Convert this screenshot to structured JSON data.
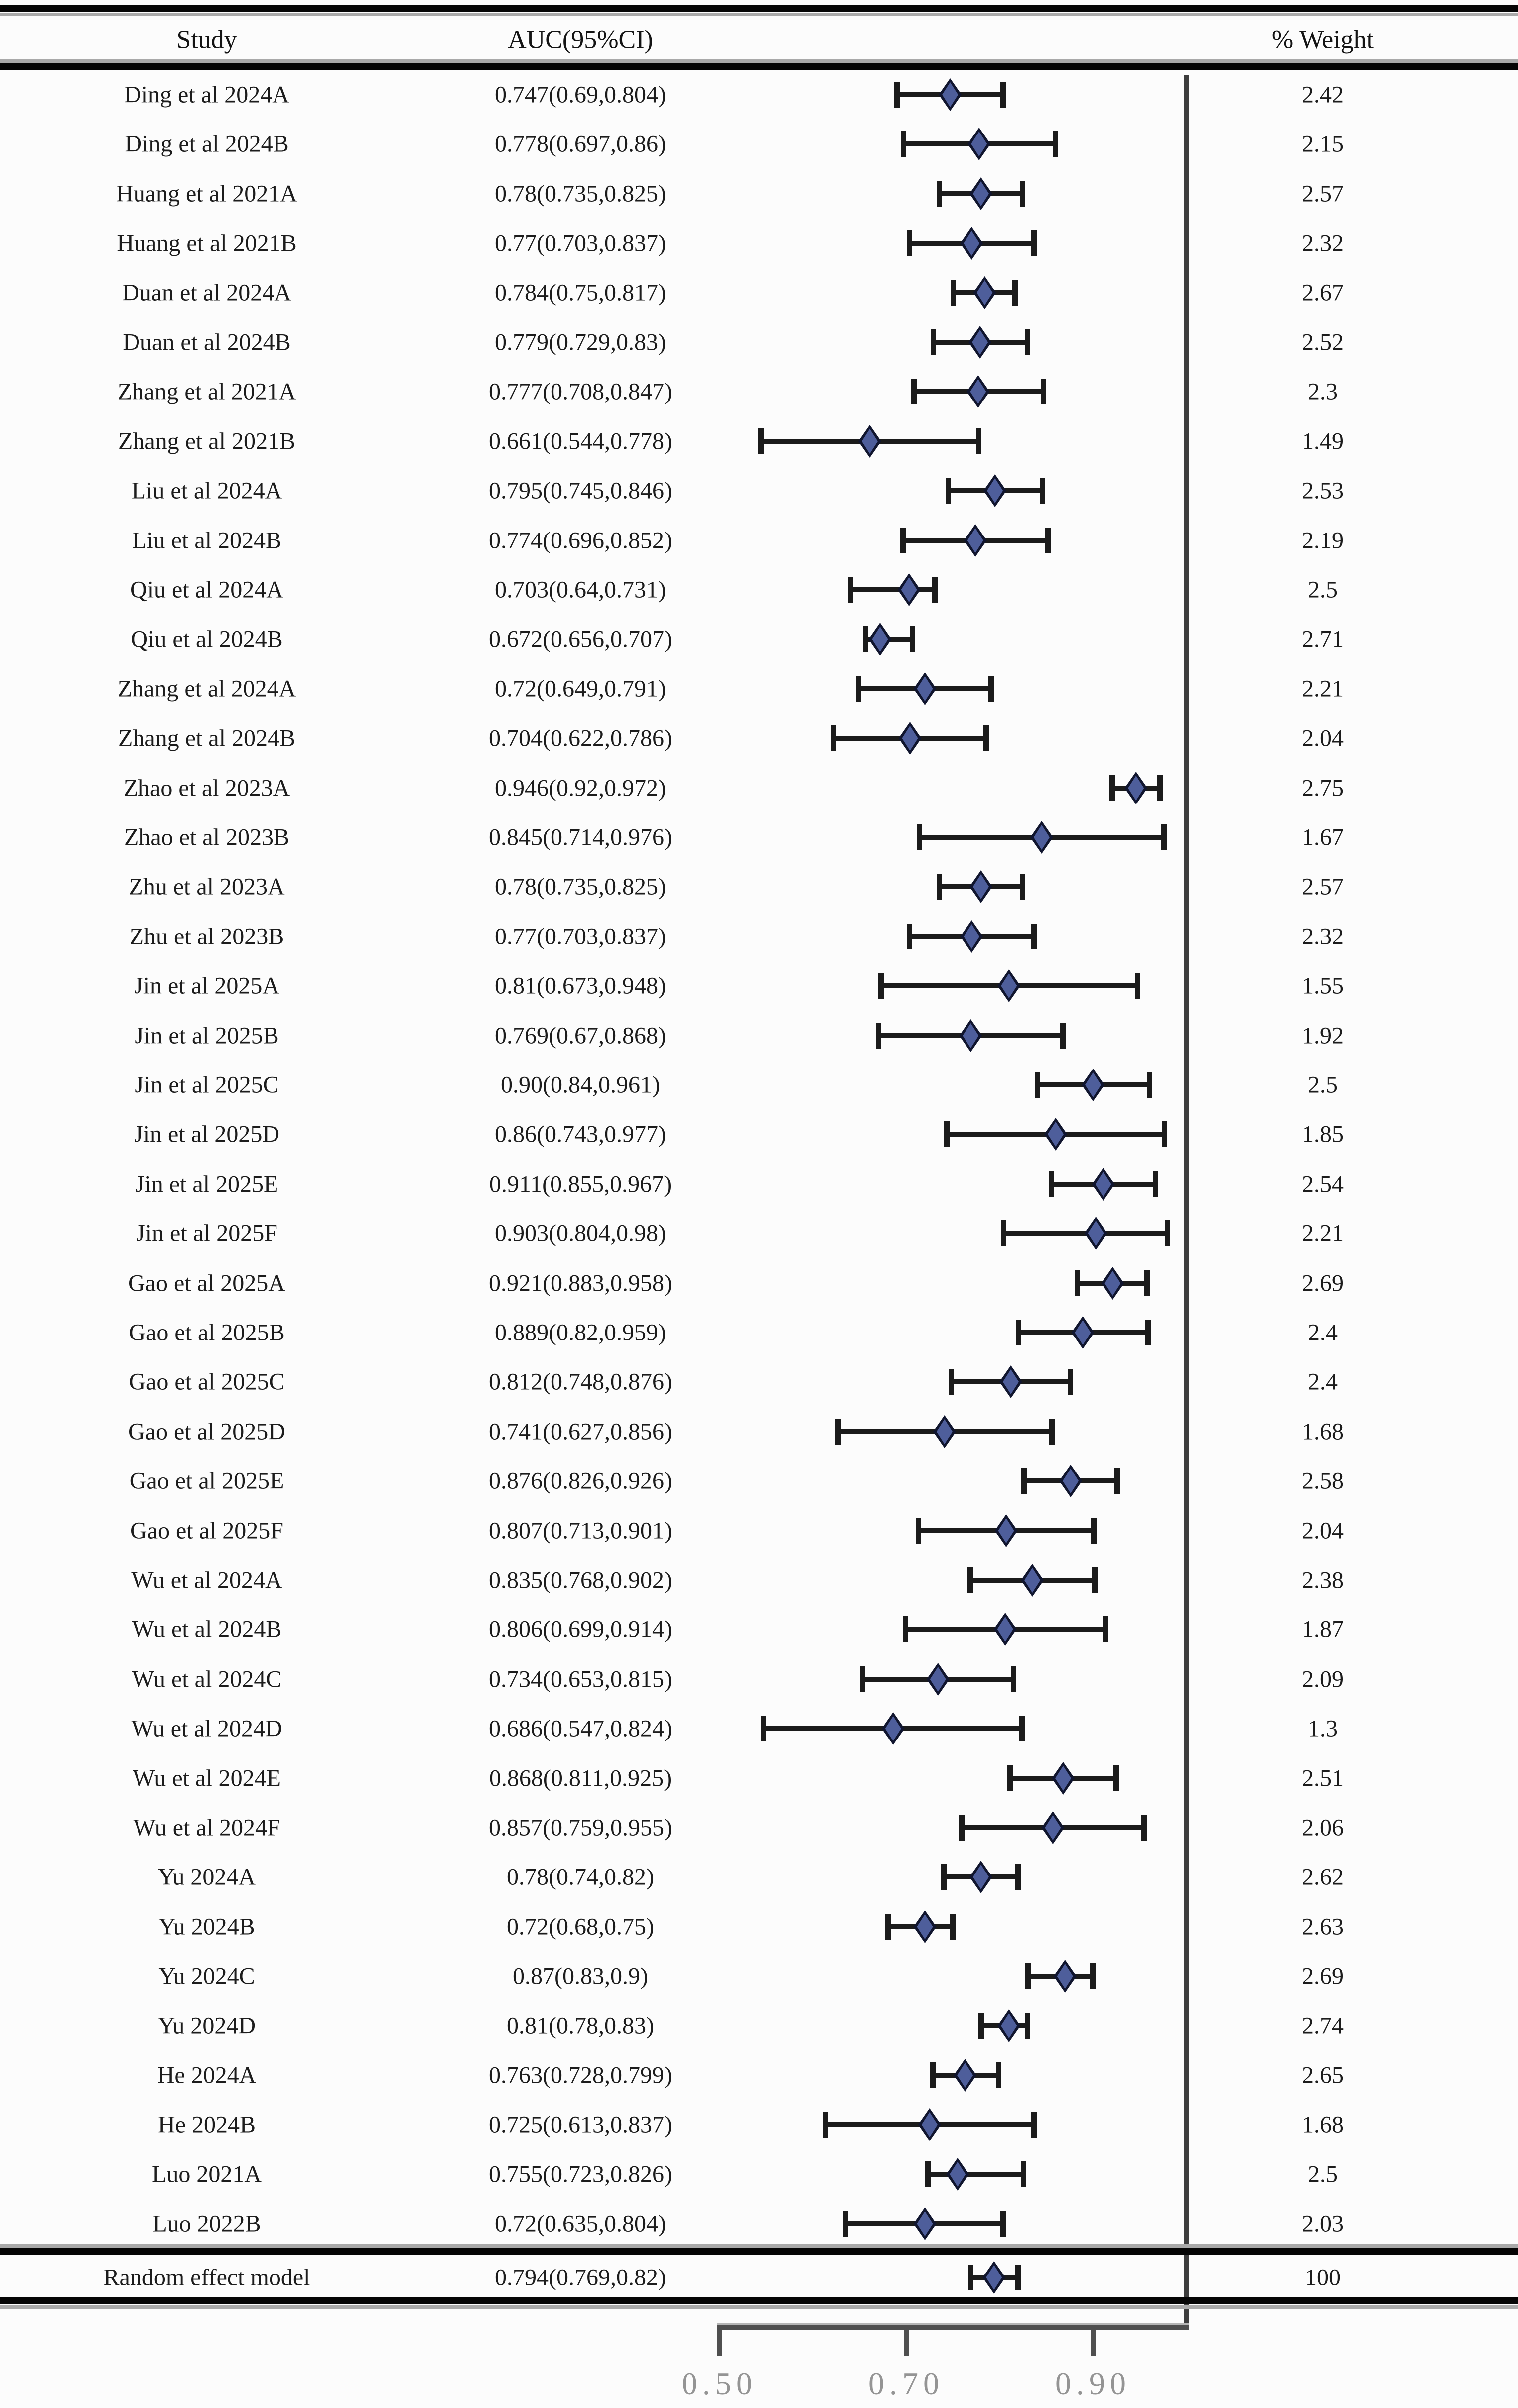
{
  "header": {
    "study": "Study",
    "auc": "AUC(95%CI)",
    "weight": "% Weight"
  },
  "chart_data": {
    "type": "forest",
    "title": "",
    "xlabel": "",
    "axis_range": [
      0.5,
      1.0
    ],
    "tick_values": [
      0.5,
      0.7,
      0.9
    ],
    "tick_labels": [
      "0.50",
      "0.70",
      "0.90"
    ],
    "refline_value": 1.0,
    "grid": false,
    "marker": "diamond",
    "colors": {
      "diamond_fill": "#4e5e9b",
      "diamond_border": "#10152e",
      "ci_line": "#1b1b1b",
      "refline": "#3d3d3d",
      "tick_label": "#949494",
      "text": "#1c1c1c",
      "rule": "#050505"
    },
    "studies": [
      {
        "label": "Ding et al 2024A",
        "auc_text": "0.747(0.69,0.804)",
        "auc": 0.747,
        "ci_low": 0.69,
        "ci_high": 0.804,
        "weight": "2.42"
      },
      {
        "label": "Ding et al 2024B",
        "auc_text": "0.778(0.697,0.86)",
        "auc": 0.778,
        "ci_low": 0.697,
        "ci_high": 0.86,
        "weight": "2.15"
      },
      {
        "label": "Huang et al 2021A",
        "auc_text": "0.78(0.735,0.825)",
        "auc": 0.78,
        "ci_low": 0.735,
        "ci_high": 0.825,
        "weight": "2.57"
      },
      {
        "label": "Huang et al 2021B",
        "auc_text": "0.77(0.703,0.837)",
        "auc": 0.77,
        "ci_low": 0.703,
        "ci_high": 0.837,
        "weight": "2.32"
      },
      {
        "label": "Duan et al 2024A",
        "auc_text": "0.784(0.75,0.817)",
        "auc": 0.784,
        "ci_low": 0.75,
        "ci_high": 0.817,
        "weight": "2.67"
      },
      {
        "label": "Duan et al 2024B",
        "auc_text": "0.779(0.729,0.83)",
        "auc": 0.779,
        "ci_low": 0.729,
        "ci_high": 0.83,
        "weight": "2.52"
      },
      {
        "label": "Zhang et al 2021A",
        "auc_text": "0.777(0.708,0.847)",
        "auc": 0.777,
        "ci_low": 0.708,
        "ci_high": 0.847,
        "weight": "2.3"
      },
      {
        "label": "Zhang et al 2021B",
        "auc_text": "0.661(0.544,0.778)",
        "auc": 0.661,
        "ci_low": 0.544,
        "ci_high": 0.778,
        "weight": "1.49"
      },
      {
        "label": "Liu et al 2024A",
        "auc_text": "0.795(0.745,0.846)",
        "auc": 0.795,
        "ci_low": 0.745,
        "ci_high": 0.846,
        "weight": "2.53"
      },
      {
        "label": "Liu et al 2024B",
        "auc_text": "0.774(0.696,0.852)",
        "auc": 0.774,
        "ci_low": 0.696,
        "ci_high": 0.852,
        "weight": "2.19"
      },
      {
        "label": "Qiu et al 2024A",
        "auc_text": "0.703(0.64,0.731)",
        "auc": 0.703,
        "ci_low": 0.64,
        "ci_high": 0.731,
        "weight": "2.5"
      },
      {
        "label": "Qiu et al 2024B",
        "auc_text": "0.672(0.656,0.707)",
        "auc": 0.672,
        "ci_low": 0.656,
        "ci_high": 0.707,
        "weight": "2.71"
      },
      {
        "label": "Zhang et al 2024A",
        "auc_text": "0.72(0.649,0.791)",
        "auc": 0.72,
        "ci_low": 0.649,
        "ci_high": 0.791,
        "weight": "2.21"
      },
      {
        "label": "Zhang et al 2024B",
        "auc_text": "0.704(0.622,0.786)",
        "auc": 0.704,
        "ci_low": 0.622,
        "ci_high": 0.786,
        "weight": "2.04"
      },
      {
        "label": "Zhao et al 2023A",
        "auc_text": "0.946(0.92,0.972)",
        "auc": 0.946,
        "ci_low": 0.92,
        "ci_high": 0.972,
        "weight": "2.75"
      },
      {
        "label": "Zhao et al 2023B",
        "auc_text": "0.845(0.714,0.976)",
        "auc": 0.845,
        "ci_low": 0.714,
        "ci_high": 0.976,
        "weight": "1.67"
      },
      {
        "label": "Zhu et al 2023A",
        "auc_text": "0.78(0.735,0.825)",
        "auc": 0.78,
        "ci_low": 0.735,
        "ci_high": 0.825,
        "weight": "2.57"
      },
      {
        "label": "Zhu et al 2023B",
        "auc_text": "0.77(0.703,0.837)",
        "auc": 0.77,
        "ci_low": 0.703,
        "ci_high": 0.837,
        "weight": "2.32"
      },
      {
        "label": "Jin et al 2025A",
        "auc_text": "0.81(0.673,0.948)",
        "auc": 0.81,
        "ci_low": 0.673,
        "ci_high": 0.948,
        "weight": "1.55"
      },
      {
        "label": "Jin et al 2025B",
        "auc_text": "0.769(0.67,0.868)",
        "auc": 0.769,
        "ci_low": 0.67,
        "ci_high": 0.868,
        "weight": "1.92"
      },
      {
        "label": "Jin et al 2025C",
        "auc_text": "0.90(0.84,0.961)",
        "auc": 0.9,
        "ci_low": 0.84,
        "ci_high": 0.961,
        "weight": "2.5"
      },
      {
        "label": "Jin et al 2025D",
        "auc_text": "0.86(0.743,0.977)",
        "auc": 0.86,
        "ci_low": 0.743,
        "ci_high": 0.977,
        "weight": "1.85"
      },
      {
        "label": "Jin et al 2025E",
        "auc_text": "0.911(0.855,0.967)",
        "auc": 0.911,
        "ci_low": 0.855,
        "ci_high": 0.967,
        "weight": "2.54"
      },
      {
        "label": "Jin et al 2025F",
        "auc_text": "0.903(0.804,0.98)",
        "auc": 0.903,
        "ci_low": 0.804,
        "ci_high": 0.98,
        "weight": "2.21"
      },
      {
        "label": "Gao et al 2025A",
        "auc_text": "0.921(0.883,0.958)",
        "auc": 0.921,
        "ci_low": 0.883,
        "ci_high": 0.958,
        "weight": "2.69"
      },
      {
        "label": "Gao et al 2025B",
        "auc_text": "0.889(0.82,0.959)",
        "auc": 0.889,
        "ci_low": 0.82,
        "ci_high": 0.959,
        "weight": "2.4"
      },
      {
        "label": "Gao et al 2025C",
        "auc_text": "0.812(0.748,0.876)",
        "auc": 0.812,
        "ci_low": 0.748,
        "ci_high": 0.876,
        "weight": "2.4"
      },
      {
        "label": "Gao et al 2025D",
        "auc_text": "0.741(0.627,0.856)",
        "auc": 0.741,
        "ci_low": 0.627,
        "ci_high": 0.856,
        "weight": "1.68"
      },
      {
        "label": "Gao et al 2025E",
        "auc_text": "0.876(0.826,0.926)",
        "auc": 0.876,
        "ci_low": 0.826,
        "ci_high": 0.926,
        "weight": "2.58"
      },
      {
        "label": "Gao et al 2025F",
        "auc_text": "0.807(0.713,0.901)",
        "auc": 0.807,
        "ci_low": 0.713,
        "ci_high": 0.901,
        "weight": "2.04"
      },
      {
        "label": "Wu et al 2024A",
        "auc_text": "0.835(0.768,0.902)",
        "auc": 0.835,
        "ci_low": 0.768,
        "ci_high": 0.902,
        "weight": "2.38"
      },
      {
        "label": "Wu et al 2024B",
        "auc_text": "0.806(0.699,0.914)",
        "auc": 0.806,
        "ci_low": 0.699,
        "ci_high": 0.914,
        "weight": "1.87"
      },
      {
        "label": "Wu et al 2024C",
        "auc_text": "0.734(0.653,0.815)",
        "auc": 0.734,
        "ci_low": 0.653,
        "ci_high": 0.815,
        "weight": "2.09"
      },
      {
        "label": "Wu et al 2024D",
        "auc_text": "0.686(0.547,0.824)",
        "auc": 0.686,
        "ci_low": 0.547,
        "ci_high": 0.824,
        "weight": "1.3"
      },
      {
        "label": "Wu et al 2024E",
        "auc_text": "0.868(0.811,0.925)",
        "auc": 0.868,
        "ci_low": 0.811,
        "ci_high": 0.925,
        "weight": "2.51"
      },
      {
        "label": "Wu et al 2024F",
        "auc_text": "0.857(0.759,0.955)",
        "auc": 0.857,
        "ci_low": 0.759,
        "ci_high": 0.955,
        "weight": "2.06"
      },
      {
        "label": "Yu 2024A",
        "auc_text": "0.78(0.74,0.82)",
        "auc": 0.78,
        "ci_low": 0.74,
        "ci_high": 0.82,
        "weight": "2.62"
      },
      {
        "label": "Yu 2024B",
        "auc_text": "0.72(0.68,0.75)",
        "auc": 0.72,
        "ci_low": 0.68,
        "ci_high": 0.75,
        "weight": "2.63"
      },
      {
        "label": "Yu 2024C",
        "auc_text": "0.87(0.83,0.9)",
        "auc": 0.87,
        "ci_low": 0.83,
        "ci_high": 0.9,
        "weight": "2.69"
      },
      {
        "label": "Yu 2024D",
        "auc_text": "0.81(0.78,0.83)",
        "auc": 0.81,
        "ci_low": 0.78,
        "ci_high": 0.83,
        "weight": "2.74"
      },
      {
        "label": "He  2024A",
        "auc_text": "0.763(0.728,0.799)",
        "auc": 0.763,
        "ci_low": 0.728,
        "ci_high": 0.799,
        "weight": "2.65"
      },
      {
        "label": "He  2024B",
        "auc_text": "0.725(0.613,0.837)",
        "auc": 0.725,
        "ci_low": 0.613,
        "ci_high": 0.837,
        "weight": "1.68"
      },
      {
        "label": "Luo 2021A",
        "auc_text": "0.755(0.723,0.826)",
        "auc": 0.755,
        "ci_low": 0.723,
        "ci_high": 0.826,
        "weight": "2.5"
      },
      {
        "label": "Luo 2022B",
        "auc_text": "0.72(0.635,0.804)",
        "auc": 0.72,
        "ci_low": 0.635,
        "ci_high": 0.804,
        "weight": "2.03"
      }
    ],
    "summary": {
      "label": "Random effect model",
      "auc_text": "0.794(0.769,0.82)",
      "auc": 0.794,
      "ci_low": 0.769,
      "ci_high": 0.82,
      "weight": "100"
    }
  }
}
